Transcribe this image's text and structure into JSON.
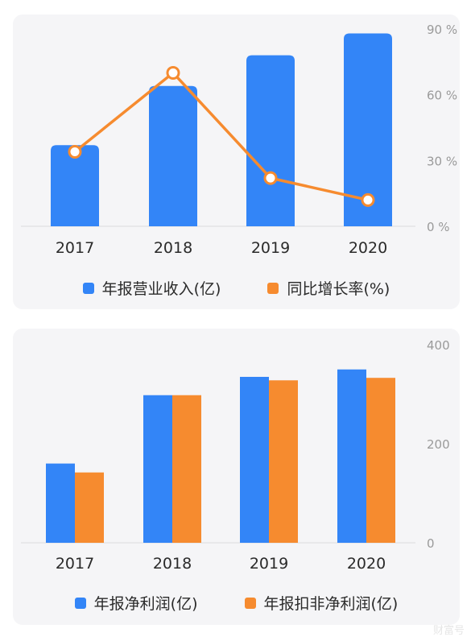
{
  "colors": {
    "blue": "#3385f7",
    "orange": "#f68b2f",
    "axis_text": "#9a9a9a",
    "label_text": "#2a2a2a"
  },
  "chart_data": [
    {
      "type": "bar",
      "categories": [
        "2017",
        "2018",
        "2019",
        "2020"
      ],
      "series": [
        {
          "name": "年报营业收入(亿)",
          "type": "bar",
          "values": [
            37,
            64,
            78,
            88
          ]
        },
        {
          "name": "同比增长率(%)",
          "type": "line",
          "values": [
            34,
            70,
            22,
            12
          ]
        }
      ],
      "right_axis": {
        "ylim": [
          0,
          90
        ],
        "ticks": [
          "0 %",
          "30 %",
          "60 %",
          "90 %"
        ]
      },
      "bar_ylim": [
        0,
        90
      ],
      "legend": [
        "年报营业收入(亿)",
        "同比增长率(%)"
      ],
      "legend_position": "bottom",
      "grid": false
    },
    {
      "type": "bar",
      "categories": [
        "2017",
        "2018",
        "2019",
        "2020"
      ],
      "series": [
        {
          "name": "年报净利润(亿)",
          "values": [
            160,
            298,
            335,
            350
          ]
        },
        {
          "name": "年报扣非净利润(亿)",
          "values": [
            142,
            298,
            328,
            333
          ]
        }
      ],
      "right_axis": {
        "ylim": [
          0,
          400
        ],
        "ticks": [
          "0",
          "200",
          "400"
        ]
      },
      "legend": [
        "年报净利润(亿)",
        "年报扣非净利润(亿)"
      ],
      "legend_position": "bottom",
      "grid": false
    }
  ],
  "watermark": "财富号"
}
